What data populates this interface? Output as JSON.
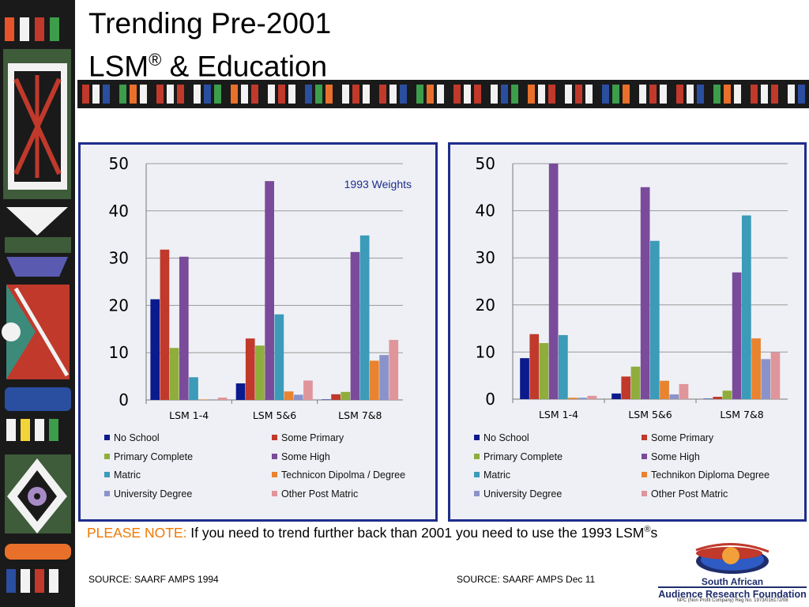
{
  "slide": {
    "title_line1": "Trending Pre-2001",
    "title_line2_a": "LSM",
    "title_line2_sup": "®",
    "title_line2_b": " & Education",
    "note_lead": "PLEASE NOTE:",
    "note_text": " If you need to trend further back than 2001 you need to use the 1993 LSM",
    "note_sup": "®",
    "note_end": "s",
    "source_left": "SOURCE: SAARF AMPS 1994",
    "source_right": "SOURCE: SAARF AMPS Dec 11"
  },
  "logo": {
    "line1": "South African",
    "line2": "Audience Research Foundation",
    "line3": "NPC (Non Profit Company)  Reg No. 1973/016172/08"
  },
  "colors": {
    "series": [
      "#0b1a8c",
      "#c0392b",
      "#8fad3c",
      "#7a4b9a",
      "#3b9bb8",
      "#e8832f",
      "#8a93c9",
      "#e0959a"
    ],
    "panel_border": "#1f2d8c",
    "note_accent": "#f07800"
  },
  "chart_data": [
    {
      "type": "bar",
      "annotation": "1993 Weights",
      "categories": [
        "LSM 1-4",
        "LSM 5&6",
        "LSM 7&8"
      ],
      "ylim": [
        0,
        50
      ],
      "yticks": [
        0,
        10,
        20,
        30,
        40,
        50
      ],
      "grid": true,
      "legend_position": "bottom",
      "series": [
        {
          "name": "No School",
          "values": [
            21.3,
            3.5,
            0.1
          ]
        },
        {
          "name": "Some Primary",
          "values": [
            31.8,
            13.0,
            1.2
          ]
        },
        {
          "name": "Primary Complete",
          "values": [
            11.0,
            11.5,
            1.7
          ]
        },
        {
          "name": "Some High",
          "values": [
            30.3,
            46.3,
            31.3
          ]
        },
        {
          "name": "Matric",
          "values": [
            4.8,
            18.1,
            34.8
          ]
        },
        {
          "name": "Technicon Dipolma / Degree",
          "values": [
            0.1,
            1.8,
            8.3
          ]
        },
        {
          "name": "University Degree",
          "values": [
            0.0,
            1.1,
            9.5
          ]
        },
        {
          "name": "Other Post Matric",
          "values": [
            0.5,
            4.1,
            12.7
          ]
        }
      ]
    },
    {
      "type": "bar",
      "categories": [
        "LSM 1-4",
        "LSM 5&6",
        "LSM 7&8"
      ],
      "ylim": [
        0,
        50
      ],
      "yticks": [
        0,
        10,
        20,
        30,
        40,
        50
      ],
      "grid": true,
      "legend_position": "bottom",
      "series": [
        {
          "name": "No School",
          "values": [
            8.7,
            1.2,
            0.1
          ]
        },
        {
          "name": "Some Primary",
          "values": [
            13.8,
            4.8,
            0.5
          ]
        },
        {
          "name": "Primary Complete",
          "values": [
            11.9,
            6.9,
            1.8
          ]
        },
        {
          "name": "Some High",
          "values": [
            50.0,
            45.0,
            26.9
          ]
        },
        {
          "name": "Matric",
          "values": [
            13.6,
            33.6,
            39.0
          ]
        },
        {
          "name": "Technikon Diploma Degree",
          "values": [
            0.3,
            3.9,
            12.9
          ]
        },
        {
          "name": "University Degree",
          "values": [
            0.3,
            1.0,
            8.5
          ]
        },
        {
          "name": "Other Post Matric",
          "values": [
            0.7,
            3.2,
            9.9
          ]
        }
      ]
    }
  ]
}
